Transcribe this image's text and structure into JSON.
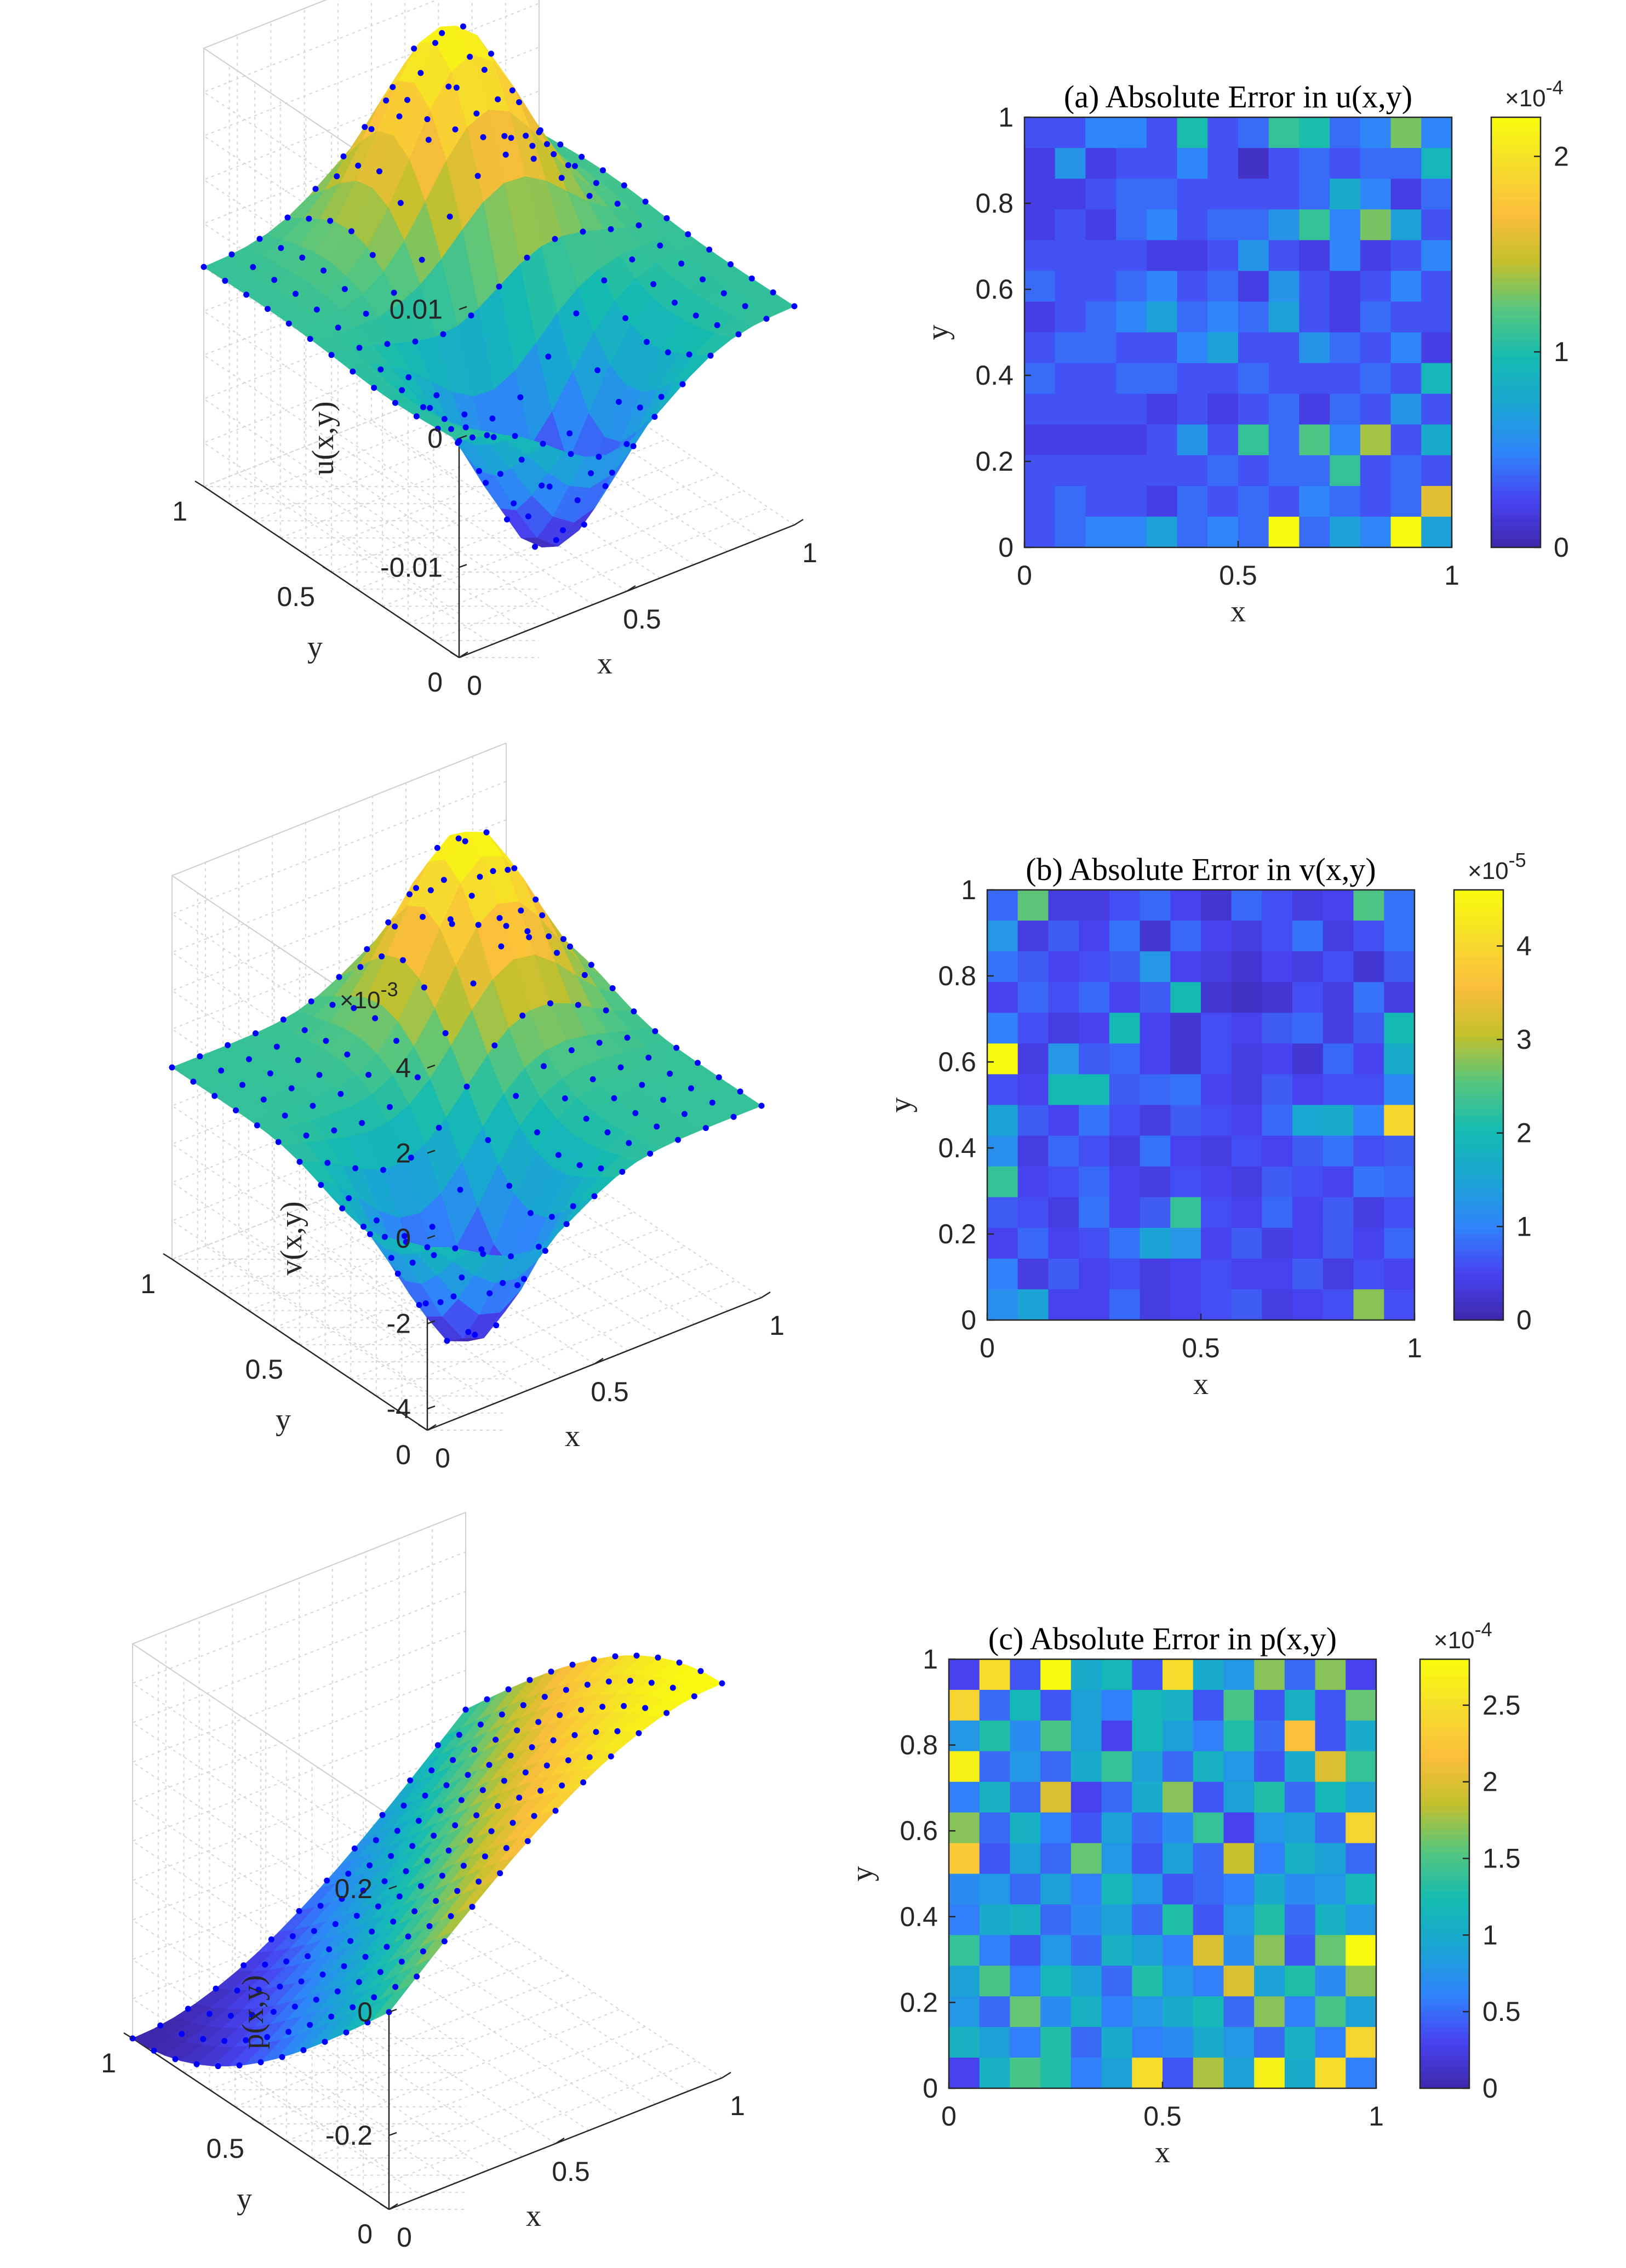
{
  "figure": {
    "colormap": [
      "#3e26a8",
      "#4743f1",
      "#2f84fa",
      "#1aa5d3",
      "#14bbb1",
      "#55c67f",
      "#c2c02d",
      "#fbbe3b",
      "#f6dc2c",
      "#f9fb0e"
    ],
    "marker_color": "#0000ff"
  },
  "chart_data": [
    {
      "id": "u_surface",
      "type": "surface3d",
      "zlabel": "u(x,y)",
      "xlabel": "x",
      "ylabel": "y",
      "xlim": [
        0,
        1
      ],
      "ylim": [
        0,
        1
      ],
      "zlim": [
        -0.017,
        0.017
      ],
      "xticks": [
        "0",
        "0.5",
        "1"
      ],
      "yticks": [
        "0",
        "0.5",
        "1"
      ],
      "zticks": [
        "-0.01",
        "0",
        "0.01"
      ],
      "zticks_values": [
        -0.01,
        0,
        0.01
      ],
      "exponent_label": "",
      "peak": {
        "x": 0.55,
        "y": 0.75,
        "value": 0.0165
      },
      "trough": {
        "x": 0.45,
        "y": 0.25,
        "value": -0.0165
      }
    },
    {
      "id": "u_error",
      "type": "heatmap",
      "title": "(a) Absolute Error in u(x,y)",
      "xlabel": "x",
      "ylabel": "y",
      "xticks": [
        "0",
        "0.5",
        "1"
      ],
      "yticks": [
        "0",
        "0.2",
        "0.4",
        "0.6",
        "0.8",
        "1"
      ],
      "colorbar_ticks": [
        "0",
        "1",
        "2"
      ],
      "colorbar_tick_values": [
        0,
        1,
        2
      ],
      "colorbar_max": 2.2,
      "colorbar_exponent": "×10",
      "colorbar_exponent_power": "-4",
      "grid_values_top_to_bottom": [
        [
          0.3,
          0.3,
          0.5,
          0.5,
          0.3,
          1.0,
          0.3,
          0.4,
          1.1,
          1.0,
          0.4,
          0.5,
          1.3,
          0.5
        ],
        [
          0.2,
          0.6,
          0.2,
          0.3,
          0.3,
          0.5,
          0.3,
          0.1,
          0.3,
          0.4,
          0.3,
          0.4,
          0.4,
          0.9
        ],
        [
          0.2,
          0.2,
          0.3,
          0.4,
          0.4,
          0.3,
          0.3,
          0.3,
          0.3,
          0.4,
          0.8,
          0.5,
          0.2,
          0.4
        ],
        [
          0.2,
          0.3,
          0.2,
          0.4,
          0.5,
          0.3,
          0.4,
          0.4,
          0.6,
          1.1,
          0.5,
          1.3,
          0.7,
          0.3
        ],
        [
          0.3,
          0.3,
          0.3,
          0.3,
          0.2,
          0.2,
          0.3,
          0.6,
          0.3,
          0.2,
          0.5,
          0.2,
          0.3,
          0.5
        ],
        [
          0.4,
          0.3,
          0.3,
          0.4,
          0.5,
          0.3,
          0.4,
          0.2,
          0.6,
          0.3,
          0.2,
          0.3,
          0.5,
          0.3
        ],
        [
          0.2,
          0.3,
          0.4,
          0.5,
          0.7,
          0.4,
          0.5,
          0.4,
          0.7,
          0.3,
          0.2,
          0.4,
          0.3,
          0.3
        ],
        [
          0.3,
          0.4,
          0.4,
          0.3,
          0.3,
          0.5,
          0.7,
          0.3,
          0.3,
          0.6,
          0.4,
          0.3,
          0.5,
          0.2
        ],
        [
          0.4,
          0.3,
          0.3,
          0.4,
          0.4,
          0.3,
          0.3,
          0.4,
          0.3,
          0.3,
          0.3,
          0.4,
          0.3,
          0.9
        ],
        [
          0.3,
          0.3,
          0.3,
          0.3,
          0.2,
          0.3,
          0.2,
          0.3,
          0.4,
          0.2,
          0.4,
          0.3,
          0.6,
          0.3
        ],
        [
          0.2,
          0.2,
          0.2,
          0.2,
          0.3,
          0.6,
          0.3,
          1.1,
          0.4,
          1.2,
          0.5,
          1.4,
          0.3,
          0.8
        ],
        [
          0.3,
          0.3,
          0.3,
          0.3,
          0.3,
          0.3,
          0.4,
          0.3,
          0.4,
          0.4,
          1.1,
          0.3,
          0.4,
          0.3
        ],
        [
          0.3,
          0.4,
          0.3,
          0.3,
          0.2,
          0.4,
          0.3,
          0.4,
          0.3,
          0.5,
          0.4,
          0.3,
          0.4,
          1.6
        ],
        [
          0.3,
          0.4,
          0.5,
          0.5,
          0.7,
          0.4,
          0.5,
          0.4,
          2.2,
          0.4,
          0.7,
          0.5,
          2.2,
          0.7
        ]
      ]
    },
    {
      "id": "v_surface",
      "type": "surface3d",
      "zlabel": "v(x,y)",
      "xlabel": "x",
      "ylabel": "y",
      "xlim": [
        0,
        1
      ],
      "ylim": [
        0,
        1
      ],
      "zlim": [
        -4.5,
        4.5
      ],
      "xticks": [
        "0",
        "0.5",
        "1"
      ],
      "yticks": [
        "0",
        "0.5",
        "1"
      ],
      "zticks": [
        "-4",
        "-2",
        "0",
        "2",
        "4"
      ],
      "zticks_values": [
        -4,
        -2,
        0,
        2,
        4
      ],
      "exponent_label": "×10",
      "exponent_power": "-3",
      "peak": {
        "x": 0.7,
        "y": 0.75,
        "value": 4.4
      },
      "trough": {
        "x": 0.3,
        "y": 0.25,
        "value": -4.4
      }
    },
    {
      "id": "v_error",
      "type": "heatmap",
      "title": "(b) Absolute Error in v(x,y)",
      "xlabel": "x",
      "ylabel": "y",
      "xticks": [
        "0",
        "0.5",
        "1"
      ],
      "yticks": [
        "0",
        "0.2",
        "0.4",
        "0.6",
        "0.8",
        "1"
      ],
      "colorbar_ticks": [
        "0",
        "1",
        "2",
        "3",
        "4"
      ],
      "colorbar_tick_values": [
        0,
        1,
        2,
        3,
        4
      ],
      "colorbar_max": 4.6,
      "colorbar_exponent": "×10",
      "colorbar_exponent_power": "-5",
      "grid_values_top_to_bottom": [
        [
          0.8,
          2.6,
          0.4,
          0.4,
          0.6,
          0.8,
          0.5,
          0.3,
          0.8,
          0.6,
          0.4,
          0.5,
          2.5,
          0.9
        ],
        [
          1.3,
          0.4,
          0.7,
          0.5,
          0.9,
          0.3,
          0.8,
          0.5,
          0.4,
          0.6,
          0.9,
          0.4,
          0.6,
          0.9
        ],
        [
          0.9,
          0.7,
          0.5,
          0.6,
          0.7,
          1.3,
          0.5,
          0.4,
          0.3,
          0.5,
          0.4,
          0.6,
          0.3,
          0.7
        ],
        [
          0.5,
          0.8,
          0.6,
          0.8,
          0.5,
          0.7,
          2.0,
          0.3,
          0.2,
          0.3,
          0.6,
          0.4,
          0.9,
          0.4
        ],
        [
          1.0,
          0.6,
          0.4,
          0.5,
          2.0,
          0.5,
          0.3,
          0.6,
          0.5,
          0.7,
          0.8,
          0.4,
          0.7,
          2.0
        ],
        [
          4.6,
          0.4,
          1.3,
          0.7,
          0.8,
          0.5,
          0.3,
          0.6,
          0.4,
          0.5,
          0.3,
          0.8,
          0.5,
          1.7
        ],
        [
          0.6,
          0.5,
          2.0,
          2.0,
          0.7,
          0.8,
          0.9,
          0.5,
          0.4,
          0.7,
          0.5,
          0.6,
          0.6,
          1.1
        ],
        [
          1.5,
          0.7,
          0.5,
          0.9,
          0.6,
          0.4,
          0.7,
          0.6,
          0.5,
          0.8,
          1.6,
          1.7,
          1.0,
          4.0
        ],
        [
          1.2,
          0.4,
          0.8,
          0.6,
          0.4,
          0.9,
          0.5,
          0.4,
          0.6,
          0.5,
          0.7,
          0.9,
          0.6,
          0.7
        ],
        [
          2.3,
          0.5,
          0.6,
          0.8,
          0.5,
          0.4,
          0.6,
          0.5,
          0.4,
          0.7,
          0.6,
          0.5,
          0.9,
          0.8
        ],
        [
          0.7,
          0.6,
          0.4,
          0.9,
          0.5,
          0.7,
          2.3,
          0.6,
          0.5,
          0.8,
          0.5,
          0.7,
          0.4,
          0.6
        ],
        [
          0.5,
          0.8,
          0.5,
          0.6,
          0.9,
          1.5,
          1.3,
          0.5,
          0.7,
          0.4,
          0.5,
          0.7,
          0.5,
          0.8
        ],
        [
          1.0,
          0.4,
          0.7,
          0.5,
          0.6,
          0.4,
          0.5,
          0.6,
          0.5,
          0.5,
          0.7,
          0.4,
          0.6,
          0.5
        ],
        [
          1.2,
          1.5,
          0.5,
          0.5,
          0.8,
          0.4,
          0.5,
          0.6,
          0.7,
          0.4,
          0.5,
          0.6,
          2.8,
          0.6
        ]
      ]
    },
    {
      "id": "p_surface",
      "type": "surface3d",
      "zlabel": "p(x,y)",
      "xlabel": "x",
      "ylabel": "y",
      "xlim": [
        0,
        1
      ],
      "ylim": [
        0,
        1
      ],
      "zlim": [
        -0.32,
        0.32
      ],
      "xticks": [
        "0",
        "0.5",
        "1"
      ],
      "yticks": [
        "0",
        "0.5",
        "1"
      ],
      "zticks": [
        "-0.2",
        "0",
        "0.2"
      ],
      "zticks_values": [
        -0.2,
        0,
        0.2
      ],
      "exponent_label": "",
      "min_corner": {
        "x": 0,
        "y": 1,
        "value": -0.32
      },
      "max_corner": {
        "x": 1,
        "y": 0,
        "value": 0.32
      }
    },
    {
      "id": "p_error",
      "type": "heatmap",
      "title": "(c) Absolute Error in p(x,y)",
      "xlabel": "x",
      "ylabel": "y",
      "xticks": [
        "0",
        "0.5",
        "1"
      ],
      "yticks": [
        "0",
        "0.2",
        "0.4",
        "0.6",
        "0.8",
        "1"
      ],
      "colorbar_ticks": [
        "0",
        "0.5",
        "1",
        "1.5",
        "2",
        "2.5"
      ],
      "colorbar_tick_values": [
        0,
        0.5,
        1,
        1.5,
        2,
        2.5
      ],
      "colorbar_max": 2.8,
      "colorbar_exponent": "×10",
      "colorbar_exponent_power": "-4",
      "grid_values_top_to_bottom": [
        [
          0.3,
          2.5,
          0.4,
          2.8,
          1.0,
          1.2,
          0.4,
          2.5,
          1.0,
          0.8,
          1.7,
          0.5,
          1.7,
          0.3
        ],
        [
          2.4,
          0.5,
          1.2,
          0.4,
          0.9,
          0.6,
          1.2,
          1.1,
          0.4,
          1.5,
          0.4,
          1.1,
          0.4,
          1.6
        ],
        [
          0.8,
          1.3,
          0.7,
          1.5,
          0.9,
          0.3,
          1.2,
          0.9,
          0.6,
          1.3,
          0.5,
          2.2,
          0.4,
          1.0
        ],
        [
          2.7,
          0.5,
          0.8,
          0.5,
          1.0,
          1.4,
          0.9,
          0.5,
          1.1,
          0.8,
          0.4,
          1.0,
          2.0,
          1.4
        ],
        [
          0.6,
          1.1,
          0.5,
          2.0,
          0.3,
          0.5,
          1.0,
          1.7,
          0.4,
          0.9,
          1.3,
          0.5,
          1.2,
          0.9
        ],
        [
          1.7,
          0.5,
          1.1,
          0.6,
          0.4,
          0.9,
          0.5,
          0.7,
          1.4,
          0.3,
          0.8,
          0.9,
          0.5,
          2.4
        ],
        [
          2.3,
          0.4,
          0.9,
          0.5,
          1.6,
          0.8,
          0.4,
          0.9,
          0.5,
          1.9,
          0.6,
          1.1,
          0.9,
          0.5
        ],
        [
          0.7,
          0.8,
          0.5,
          0.9,
          0.6,
          1.2,
          0.8,
          0.4,
          0.5,
          0.6,
          1.0,
          0.7,
          0.8,
          1.2
        ],
        [
          0.6,
          1.0,
          1.1,
          0.5,
          0.7,
          0.9,
          0.5,
          1.3,
          0.4,
          0.8,
          1.3,
          0.5,
          1.1,
          0.8
        ],
        [
          1.4,
          0.6,
          0.4,
          0.8,
          0.5,
          1.1,
          0.9,
          0.6,
          2.0,
          0.7,
          1.7,
          0.4,
          1.6,
          2.8
        ],
        [
          0.9,
          1.5,
          0.6,
          1.2,
          0.9,
          0.5,
          1.3,
          0.8,
          0.6,
          2.0,
          0.9,
          1.3,
          0.7,
          1.7
        ],
        [
          0.8,
          0.5,
          1.6,
          0.7,
          1.1,
          0.6,
          0.8,
          1.0,
          1.2,
          0.5,
          1.7,
          0.6,
          1.5,
          0.9
        ],
        [
          1.1,
          0.9,
          0.6,
          1.3,
          0.5,
          1.0,
          0.6,
          0.7,
          1.0,
          0.8,
          0.5,
          1.1,
          0.6,
          2.4
        ],
        [
          0.3,
          1.1,
          1.5,
          1.3,
          0.6,
          0.9,
          2.5,
          0.4,
          1.8,
          0.9,
          2.7,
          1.0,
          2.5,
          0.6
        ]
      ]
    }
  ]
}
